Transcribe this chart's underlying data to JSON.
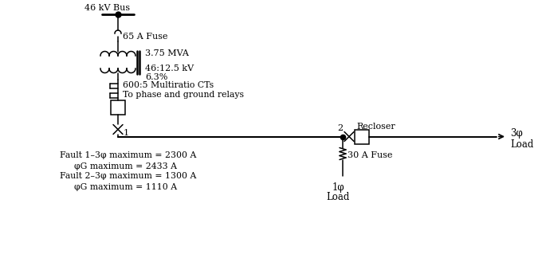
{
  "bg_color": "#ffffff",
  "line_color": "#000000",
  "text_color": "#000000",
  "bus_label": "46 kV Bus",
  "fuse1_label": "65 A Fuse",
  "transformer_label1": "3.75 MVA",
  "transformer_label2": "46:12.5 kV",
  "transformer_label3": "6.3%",
  "ct_label1": "600:5 Multiratio CTs",
  "ct_label2": "To phase and ground relays",
  "node1_label": "1",
  "node2_label": "2",
  "recloser_label": "Recloser",
  "fuse2_label": "30 A Fuse",
  "load3ph_label1": "3φ",
  "load3ph_label2": "Load",
  "load1ph_label1": "1φ",
  "load1ph_label2": "Load",
  "fault_line1": "Fault 1–3φ maximum = 2300 A",
  "fault_line2": "φG maximum = 2433 A",
  "fault_line3": "Fault 2–3φ maximum = 1300 A",
  "fault_line4": "φG maximum = 1110 A",
  "figsize": [
    6.75,
    3.29
  ],
  "dpi": 100
}
